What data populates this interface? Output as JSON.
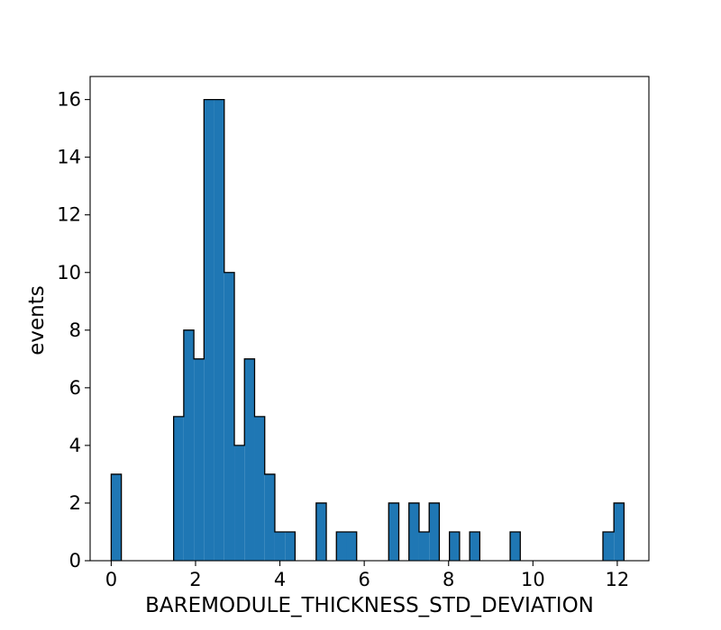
{
  "chart_data": {
    "type": "bar",
    "title": "",
    "xlabel": "BAREMODULE_THICKNESS_STD_DEVIATION",
    "ylabel": "events",
    "xlim": [
      -0.5,
      12.75
    ],
    "ylim": [
      0,
      16.8
    ],
    "grid": false,
    "histtype": "stepfilled",
    "bar_color": "#1f77b4",
    "edge_color": "#000000",
    "x_ticks": [
      0,
      2,
      4,
      6,
      8,
      10,
      12
    ],
    "x_tick_labels": [
      "0",
      "2",
      "4",
      "6",
      "8",
      "10",
      "12"
    ],
    "y_ticks": [
      0,
      2,
      4,
      6,
      8,
      10,
      12,
      14,
      16
    ],
    "y_tick_labels": [
      "0",
      "2",
      "4",
      "6",
      "8",
      "10",
      "12",
      "14",
      "16"
    ],
    "bins": [
      {
        "x0": 0.0,
        "x1": 0.24,
        "count": 3
      },
      {
        "x0": 1.48,
        "x1": 1.72,
        "count": 5
      },
      {
        "x0": 1.72,
        "x1": 1.96,
        "count": 8
      },
      {
        "x0": 1.96,
        "x1": 2.2,
        "count": 7
      },
      {
        "x0": 2.2,
        "x1": 2.44,
        "count": 16
      },
      {
        "x0": 2.44,
        "x1": 2.68,
        "count": 16
      },
      {
        "x0": 2.68,
        "x1": 2.92,
        "count": 10
      },
      {
        "x0": 2.92,
        "x1": 3.16,
        "count": 4
      },
      {
        "x0": 3.16,
        "x1": 3.4,
        "count": 7
      },
      {
        "x0": 3.4,
        "x1": 3.64,
        "count": 5
      },
      {
        "x0": 3.64,
        "x1": 3.88,
        "count": 3
      },
      {
        "x0": 3.88,
        "x1": 4.12,
        "count": 1
      },
      {
        "x0": 4.12,
        "x1": 4.36,
        "count": 1
      },
      {
        "x0": 4.86,
        "x1": 5.1,
        "count": 2
      },
      {
        "x0": 5.34,
        "x1": 5.58,
        "count": 1
      },
      {
        "x0": 5.58,
        "x1": 5.82,
        "count": 1
      },
      {
        "x0": 6.58,
        "x1": 6.82,
        "count": 2
      },
      {
        "x0": 7.06,
        "x1": 7.3,
        "count": 2
      },
      {
        "x0": 7.3,
        "x1": 7.54,
        "count": 1
      },
      {
        "x0": 7.54,
        "x1": 7.78,
        "count": 2
      },
      {
        "x0": 8.02,
        "x1": 8.26,
        "count": 1
      },
      {
        "x0": 8.5,
        "x1": 8.74,
        "count": 1
      },
      {
        "x0": 9.46,
        "x1": 9.7,
        "count": 1
      },
      {
        "x0": 11.66,
        "x1": 11.92,
        "count": 1
      },
      {
        "x0": 11.92,
        "x1": 12.16,
        "count": 2
      }
    ]
  }
}
